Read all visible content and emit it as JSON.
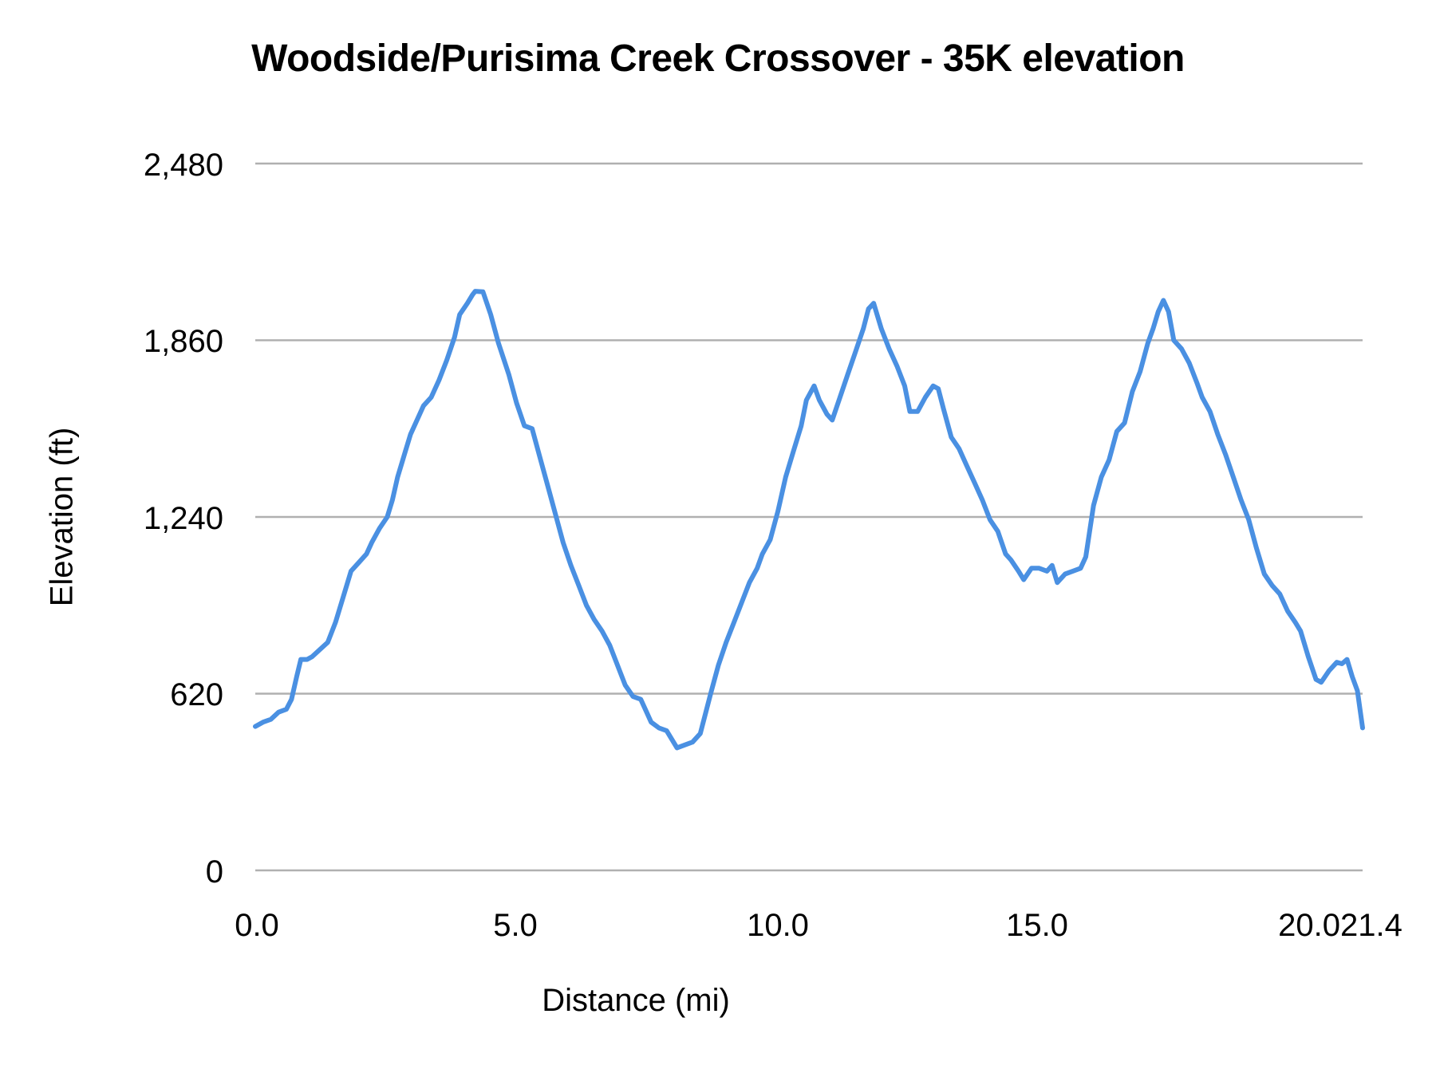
{
  "chart_data": {
    "type": "line",
    "title": "Woodside/Purisima Creek Crossover - 35K elevation",
    "xlabel": "Distance (mi)",
    "ylabel": "Elevation (ft)",
    "xlim": [
      0,
      21.4
    ],
    "ylim": [
      0,
      2480
    ],
    "x_ticks": [
      "0.0",
      "5.0",
      "10.0",
      "15.0",
      "20.0",
      "21.4"
    ],
    "x_tick_values": [
      0,
      5,
      10,
      15,
      20,
      21.4
    ],
    "x_tick_label_rendered": [
      "0.0",
      "5.0",
      "10.0",
      "15.0",
      "20.021.4"
    ],
    "y_ticks": [
      "0",
      "620",
      "1,240",
      "1,860",
      "2,480"
    ],
    "y_tick_values": [
      0,
      620,
      1240,
      1860,
      2480
    ],
    "grid": {
      "horizontal": true,
      "vertical": false,
      "color": "#b0b0b0"
    },
    "legend": null,
    "series": [
      {
        "name": "Elevation",
        "color": "#4a90e2",
        "points": [
          [
            0.0,
            505
          ],
          [
            0.15,
            520
          ],
          [
            0.3,
            530
          ],
          [
            0.45,
            555
          ],
          [
            0.6,
            565
          ],
          [
            0.7,
            600
          ],
          [
            0.8,
            680
          ],
          [
            0.88,
            740
          ],
          [
            1.0,
            740
          ],
          [
            1.1,
            750
          ],
          [
            1.25,
            775
          ],
          [
            1.4,
            800
          ],
          [
            1.55,
            870
          ],
          [
            1.7,
            960
          ],
          [
            1.85,
            1050
          ],
          [
            2.0,
            1080
          ],
          [
            2.15,
            1110
          ],
          [
            2.25,
            1150
          ],
          [
            2.4,
            1200
          ],
          [
            2.55,
            1240
          ],
          [
            2.65,
            1300
          ],
          [
            2.75,
            1380
          ],
          [
            2.9,
            1470
          ],
          [
            3.0,
            1530
          ],
          [
            3.1,
            1570
          ],
          [
            3.25,
            1630
          ],
          [
            3.4,
            1660
          ],
          [
            3.55,
            1720
          ],
          [
            3.7,
            1790
          ],
          [
            3.85,
            1870
          ],
          [
            3.95,
            1950
          ],
          [
            4.1,
            1990
          ],
          [
            4.2,
            2020
          ],
          [
            4.25,
            2032
          ],
          [
            4.4,
            2030
          ],
          [
            4.55,
            1950
          ],
          [
            4.7,
            1850
          ],
          [
            4.9,
            1740
          ],
          [
            5.05,
            1640
          ],
          [
            5.2,
            1560
          ],
          [
            5.35,
            1550
          ],
          [
            5.5,
            1450
          ],
          [
            5.65,
            1350
          ],
          [
            5.8,
            1250
          ],
          [
            5.95,
            1150
          ],
          [
            6.1,
            1070
          ],
          [
            6.25,
            1000
          ],
          [
            6.4,
            930
          ],
          [
            6.55,
            880
          ],
          [
            6.7,
            840
          ],
          [
            6.85,
            790
          ],
          [
            7.0,
            720
          ],
          [
            7.15,
            650
          ],
          [
            7.3,
            610
          ],
          [
            7.45,
            600
          ],
          [
            7.55,
            560
          ],
          [
            7.65,
            520
          ],
          [
            7.8,
            500
          ],
          [
            7.95,
            490
          ],
          [
            8.05,
            460
          ],
          [
            8.15,
            430
          ],
          [
            8.3,
            440
          ],
          [
            8.45,
            450
          ],
          [
            8.6,
            480
          ],
          [
            8.7,
            550
          ],
          [
            8.8,
            620
          ],
          [
            8.95,
            720
          ],
          [
            9.1,
            800
          ],
          [
            9.25,
            870
          ],
          [
            9.4,
            940
          ],
          [
            9.55,
            1010
          ],
          [
            9.7,
            1060
          ],
          [
            9.8,
            1110
          ],
          [
            9.95,
            1160
          ],
          [
            10.1,
            1260
          ],
          [
            10.25,
            1380
          ],
          [
            10.4,
            1470
          ],
          [
            10.55,
            1560
          ],
          [
            10.65,
            1650
          ],
          [
            10.8,
            1700
          ],
          [
            10.9,
            1650
          ],
          [
            11.05,
            1600
          ],
          [
            11.15,
            1580
          ],
          [
            11.3,
            1660
          ],
          [
            11.45,
            1740
          ],
          [
            11.6,
            1820
          ],
          [
            11.75,
            1900
          ],
          [
            11.85,
            1970
          ],
          [
            11.95,
            1990
          ],
          [
            12.1,
            1900
          ],
          [
            12.25,
            1830
          ],
          [
            12.4,
            1770
          ],
          [
            12.55,
            1700
          ],
          [
            12.65,
            1610
          ],
          [
            12.8,
            1610
          ],
          [
            12.95,
            1660
          ],
          [
            13.1,
            1700
          ],
          [
            13.2,
            1690
          ],
          [
            13.3,
            1620
          ],
          [
            13.45,
            1520
          ],
          [
            13.6,
            1480
          ],
          [
            13.75,
            1420
          ],
          [
            13.9,
            1360
          ],
          [
            14.05,
            1300
          ],
          [
            14.2,
            1230
          ],
          [
            14.35,
            1190
          ],
          [
            14.5,
            1110
          ],
          [
            14.6,
            1090
          ],
          [
            14.75,
            1050
          ],
          [
            14.85,
            1020
          ],
          [
            15.0,
            1060
          ],
          [
            15.15,
            1060
          ],
          [
            15.3,
            1050
          ],
          [
            15.4,
            1070
          ],
          [
            15.5,
            1010
          ],
          [
            15.65,
            1040
          ],
          [
            15.8,
            1050
          ],
          [
            15.95,
            1060
          ],
          [
            16.05,
            1100
          ],
          [
            16.2,
            1280
          ],
          [
            16.35,
            1380
          ],
          [
            16.5,
            1440
          ],
          [
            16.65,
            1540
          ],
          [
            16.8,
            1570
          ],
          [
            16.95,
            1680
          ],
          [
            17.1,
            1750
          ],
          [
            17.25,
            1850
          ],
          [
            17.35,
            1900
          ],
          [
            17.45,
            1960
          ],
          [
            17.55,
            2000
          ],
          [
            17.65,
            1960
          ],
          [
            17.75,
            1860
          ],
          [
            17.9,
            1830
          ],
          [
            18.05,
            1780
          ],
          [
            18.2,
            1710
          ],
          [
            18.3,
            1660
          ],
          [
            18.45,
            1610
          ],
          [
            18.6,
            1530
          ],
          [
            18.75,
            1460
          ],
          [
            18.9,
            1380
          ],
          [
            19.05,
            1300
          ],
          [
            19.2,
            1230
          ],
          [
            19.35,
            1130
          ],
          [
            19.5,
            1040
          ],
          [
            19.65,
            1000
          ],
          [
            19.8,
            970
          ],
          [
            19.95,
            910
          ],
          [
            20.1,
            870
          ],
          [
            20.2,
            840
          ],
          [
            20.35,
            750
          ],
          [
            20.5,
            670
          ],
          [
            20.6,
            660
          ],
          [
            20.75,
            700
          ],
          [
            20.9,
            730
          ],
          [
            21.0,
            725
          ],
          [
            21.1,
            740
          ],
          [
            21.2,
            680
          ],
          [
            21.3,
            630
          ],
          [
            21.4,
            500
          ]
        ]
      }
    ]
  },
  "labels": {
    "title": "Woodside/Purisima Creek Crossover - 35K elevation",
    "x_axis": "Distance (mi)",
    "y_axis": "Elevation (ft)",
    "y_ticks": [
      "2,480",
      "1,860",
      "1,240",
      "620",
      "0"
    ],
    "x_ticks": [
      "0.0",
      "5.0",
      "10.0",
      "15.0",
      "20.021.4"
    ]
  }
}
